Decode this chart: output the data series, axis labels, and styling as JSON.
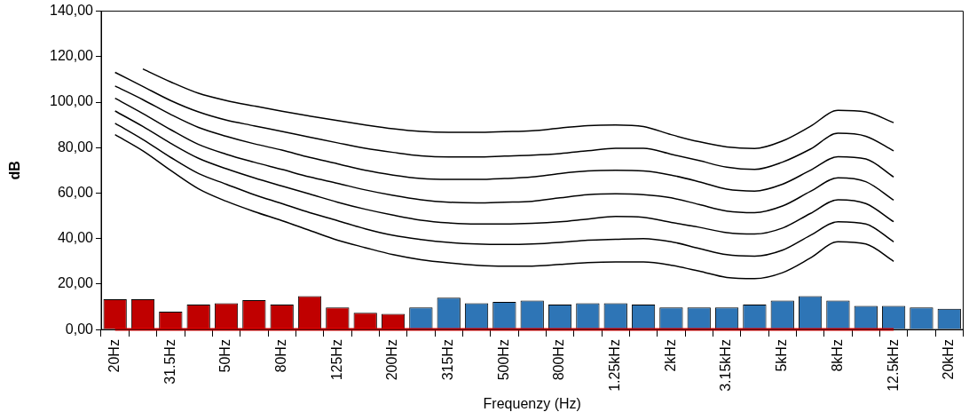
{
  "chart_data": {
    "type": "bar",
    "xlabel": "Frequenzy (Hz)",
    "ylabel": "dB",
    "ylim": [
      0,
      140
    ],
    "yticks": [
      {
        "value": 0,
        "label": "0,00"
      },
      {
        "value": 20,
        "label": "20,00"
      },
      {
        "value": 40,
        "label": "40,00"
      },
      {
        "value": 60,
        "label": "60,00"
      },
      {
        "value": 80,
        "label": "80,00"
      },
      {
        "value": 100,
        "label": "100,00"
      },
      {
        "value": 120,
        "label": "120,00"
      },
      {
        "value": 140,
        "label": "140,00"
      }
    ],
    "categories": [
      "20Hz",
      null,
      "31.5Hz",
      null,
      "50Hz",
      null,
      "80Hz",
      null,
      "125Hz",
      null,
      "200Hz",
      null,
      "315Hz",
      null,
      "500Hz",
      null,
      "800Hz",
      null,
      "1.25kHz",
      null,
      "2kHz",
      null,
      "3.15kHz",
      null,
      "5kHz",
      null,
      "8kHz",
      null,
      "12.5kHz",
      null,
      "20kHz"
    ],
    "grid": false,
    "marker": "none",
    "line_style": "solid",
    "series": [
      {
        "values": [
          13.3,
          13.3,
          7.9,
          11.0,
          11.6,
          12.9,
          11.0,
          14.7,
          9.7,
          7.4,
          6.9,
          9.7,
          14.0,
          11.6,
          12.1,
          12.7,
          11.0,
          11.6,
          11.6,
          11.0,
          9.7,
          9.7,
          9.7,
          11.0,
          12.7,
          14.7,
          12.7,
          10.4,
          10.4,
          9.7,
          9.1
        ],
        "colors": [
          "#c00000",
          "#c00000",
          "#c00000",
          "#c00000",
          "#c00000",
          "#c00000",
          "#c00000",
          "#c00000",
          "#c00000",
          "#c00000",
          "#c00000",
          "#2e75b6",
          "#2e75b6",
          "#2e75b6",
          "#2e75b6",
          "#2e75b6",
          "#2e75b6",
          "#2e75b6",
          "#2e75b6",
          "#2e75b6",
          "#2e75b6",
          "#2e75b6",
          "#2e75b6",
          "#2e75b6",
          "#2e75b6",
          "#2e75b6",
          "#2e75b6",
          "#2e75b6",
          "#2e75b6",
          "#2e75b6",
          "#2e75b6"
        ]
      },
      {
        "type": "line",
        "color": "#ff0000",
        "values": [
          0,
          0,
          0,
          0,
          0,
          0,
          0,
          0,
          0,
          0,
          0,
          0,
          0,
          0,
          0,
          0,
          0,
          0,
          0,
          0,
          0,
          0,
          0,
          0,
          0,
          0,
          0,
          0,
          0,
          null,
          null
        ]
      },
      {
        "type": "line",
        "color": "#000000",
        "values": [
          null,
          114.6,
          108.9,
          103.9,
          100.7,
          98.3,
          96.0,
          93.9,
          91.9,
          90.0,
          88.3,
          87.1,
          86.7,
          86.7,
          87.0,
          87.4,
          88.6,
          89.7,
          90.0,
          89.3,
          85.7,
          82.6,
          80.3,
          79.6,
          82.9,
          89.3,
          96.4,
          95.7,
          91.0,
          null,
          null
        ]
      },
      {
        "type": "line",
        "color": "#000000",
        "values": [
          113.1,
          106.9,
          100.7,
          95.7,
          92.1,
          89.6,
          87.1,
          84.6,
          82.1,
          79.7,
          77.9,
          76.4,
          75.9,
          75.9,
          76.3,
          76.7,
          77.4,
          78.6,
          79.7,
          79.7,
          77.1,
          74.3,
          71.4,
          70.4,
          73.6,
          79.3,
          86.3,
          85.0,
          78.6,
          null,
          null
        ]
      },
      {
        "type": "line",
        "color": "#000000",
        "values": [
          107.1,
          101.1,
          94.6,
          88.9,
          85.0,
          81.7,
          78.9,
          75.7,
          72.9,
          70.0,
          67.9,
          66.4,
          66.0,
          66.0,
          66.4,
          67.1,
          68.6,
          69.7,
          70.0,
          69.7,
          67.9,
          65.0,
          61.7,
          60.9,
          63.9,
          70.0,
          76.0,
          75.0,
          67.1,
          null,
          null
        ]
      },
      {
        "type": "line",
        "color": "#000000",
        "values": [
          101.7,
          95.0,
          87.9,
          81.4,
          77.1,
          73.6,
          70.4,
          67.1,
          64.3,
          61.4,
          59.0,
          57.1,
          56.0,
          55.7,
          56.0,
          56.4,
          57.9,
          59.3,
          59.7,
          59.3,
          57.9,
          55.0,
          52.1,
          51.4,
          54.3,
          60.7,
          66.7,
          65.0,
          56.9,
          null,
          null
        ]
      },
      {
        "type": "line",
        "color": "#000000",
        "values": [
          96.1,
          89.3,
          81.9,
          75.3,
          70.7,
          66.7,
          63.1,
          59.6,
          56.0,
          52.9,
          50.3,
          48.1,
          46.9,
          46.4,
          46.4,
          46.7,
          47.4,
          48.6,
          49.7,
          49.3,
          47.1,
          45.0,
          42.6,
          42.0,
          44.6,
          51.0,
          57.1,
          55.4,
          47.4,
          null,
          null
        ]
      },
      {
        "type": "line",
        "color": "#000000",
        "values": [
          90.7,
          83.6,
          75.7,
          68.6,
          63.9,
          59.3,
          55.4,
          51.4,
          47.9,
          44.3,
          41.4,
          39.6,
          38.3,
          37.6,
          37.4,
          37.6,
          38.3,
          39.3,
          39.7,
          40.0,
          38.6,
          35.7,
          32.9,
          32.3,
          34.9,
          41.4,
          47.4,
          46.4,
          38.6,
          null,
          null
        ]
      },
      {
        "type": "line",
        "color": "#000000",
        "values": [
          85.7,
          78.6,
          70.0,
          61.9,
          56.4,
          51.9,
          47.9,
          43.6,
          39.3,
          36.0,
          32.9,
          30.7,
          29.3,
          28.3,
          27.9,
          27.9,
          28.6,
          29.4,
          29.7,
          29.7,
          28.3,
          25.7,
          22.9,
          22.4,
          25.0,
          31.4,
          38.6,
          37.6,
          30.0,
          null,
          null
        ]
      }
    ]
  }
}
